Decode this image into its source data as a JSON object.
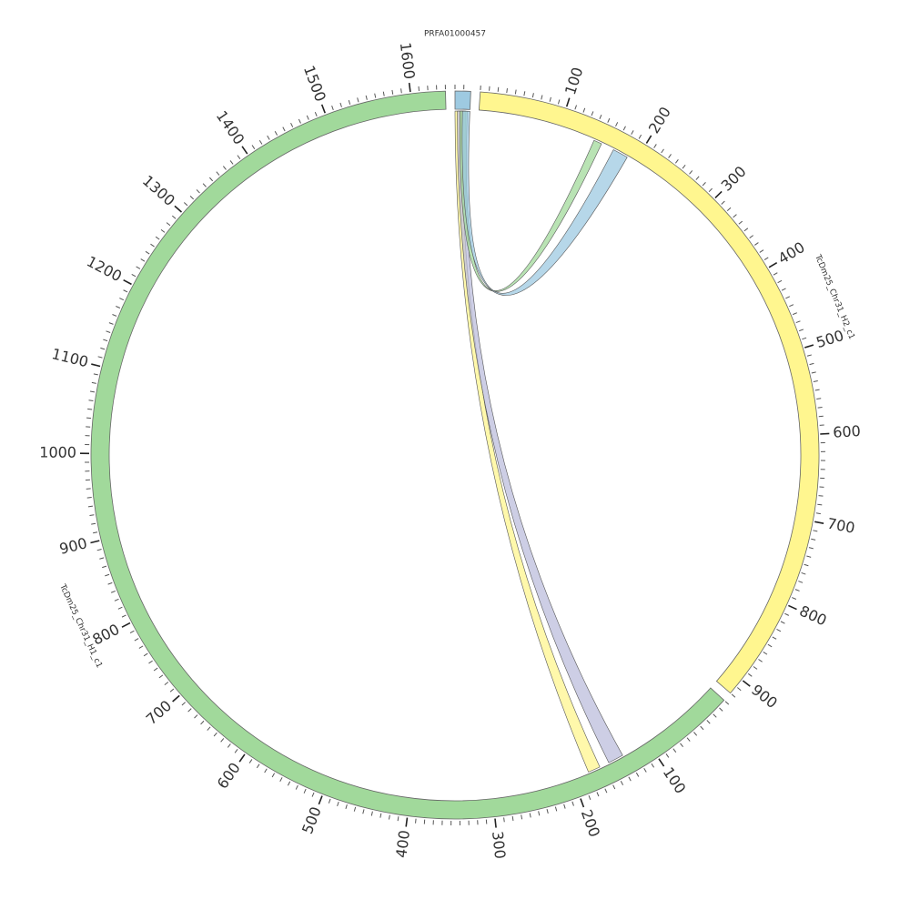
{
  "title": "PRFA01000457",
  "minor_tick_interval": 10,
  "segments": [
    {
      "name": "PRFA01000457",
      "length": 18,
      "color": "#9ecae1",
      "ticks": []
    },
    {
      "name": "TcDm25_Chr31_H2_c1",
      "length": 920,
      "color": "#fff68f",
      "ticks": [
        100,
        200,
        300,
        400,
        500,
        600,
        700,
        800,
        900
      ]
    },
    {
      "name": "TcDm25_Chr31_H1_c1",
      "length": 1640,
      "color": "#a1d99b",
      "ticks": [
        100,
        200,
        300,
        400,
        500,
        600,
        700,
        800,
        900,
        1000,
        1100,
        1200,
        1300,
        1400,
        1500,
        1600
      ]
    }
  ],
  "links": [
    {
      "source": 0,
      "source_range": [
        0,
        9
      ],
      "target": 2,
      "target_range": [
        165,
        180
      ],
      "color": "#fff68f"
    },
    {
      "source": 0,
      "source_range": [
        3,
        13
      ],
      "target": 2,
      "target_range": [
        134,
        153
      ],
      "color": "#bcbddc"
    },
    {
      "source": 0,
      "source_range": [
        6,
        15
      ],
      "target": 1,
      "target_range": [
        144,
        154
      ],
      "color": "#a1d99b"
    },
    {
      "source": 0,
      "source_range": [
        9,
        18
      ],
      "target": 1,
      "target_range": [
        170,
        189
      ],
      "color": "#9ecae1"
    }
  ]
}
